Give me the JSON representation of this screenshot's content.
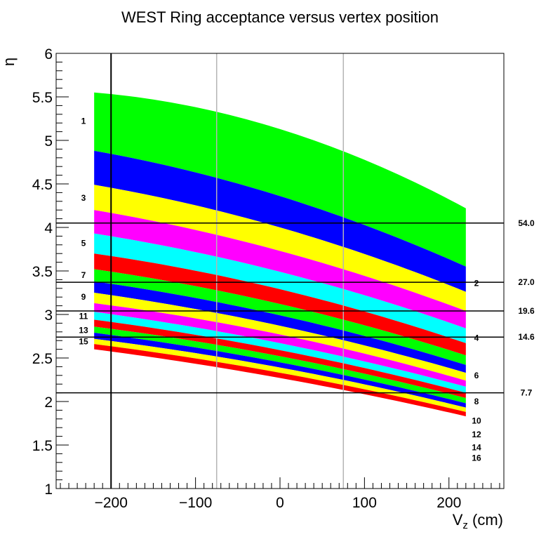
{
  "chart_data": {
    "type": "area",
    "title": "WEST Ring acceptance versus vertex position",
    "xlabel": {
      "main": "V",
      "sub": "z",
      "unit": " (cm)"
    },
    "ylabel": "η",
    "xlim": [
      -265,
      265
    ],
    "ylim": [
      1,
      6
    ],
    "x_ticks": [
      -200,
      -100,
      0,
      100,
      200
    ],
    "x_tick_labels": [
      "−200",
      "−100",
      "0",
      "100",
      "200"
    ],
    "y_ticks": [
      1,
      1.5,
      2,
      2.5,
      3,
      3.5,
      4,
      4.5,
      5,
      5.5,
      6
    ],
    "y_tick_labels": [
      "1",
      "1.5",
      "2",
      "2.5",
      "3",
      "3.5",
      "4",
      "4.5",
      "5",
      "5.5",
      "6"
    ],
    "x_minor_step": 10,
    "y_minor_step": 0.1,
    "vz_range": [
      -220,
      220
    ],
    "rings": [
      {
        "ring": 1,
        "color": "#00ff00",
        "eta_at_vz": {
          "-220": [
            4.88,
            5.55
          ],
          "0": [
            4.36,
            5.13
          ],
          "220": [
            3.55,
            4.22
          ]
        }
      },
      {
        "ring": 2,
        "color": "#0000ff",
        "eta_at_vz": {
          "-220": [
            4.49,
            4.88
          ],
          "0": [
            4.0,
            4.36
          ],
          "220": [
            3.26,
            3.55
          ]
        }
      },
      {
        "ring": 3,
        "color": "#ffff00",
        "eta_at_vz": {
          "-220": [
            4.2,
            4.49
          ],
          "0": [
            3.73,
            4.0
          ],
          "220": [
            3.04,
            3.26
          ]
        }
      },
      {
        "ring": 4,
        "color": "#ff00ff",
        "eta_at_vz": {
          "-220": [
            3.93,
            4.2
          ],
          "0": [
            3.49,
            3.73
          ],
          "220": [
            2.84,
            3.04
          ]
        }
      },
      {
        "ring": 5,
        "color": "#00ffff",
        "eta_at_vz": {
          "-220": [
            3.7,
            3.93
          ],
          "0": [
            3.29,
            3.49
          ],
          "220": [
            2.67,
            2.84
          ]
        }
      },
      {
        "ring": 6,
        "color": "#ff0000",
        "eta_at_vz": {
          "-220": [
            3.52,
            3.7
          ],
          "0": [
            3.12,
            3.29
          ],
          "220": [
            2.53,
            2.67
          ]
        }
      },
      {
        "ring": 7,
        "color": "#00ff00",
        "eta_at_vz": {
          "-220": [
            3.38,
            3.52
          ],
          "0": [
            2.99,
            3.12
          ],
          "220": [
            2.42,
            2.53
          ]
        }
      },
      {
        "ring": 8,
        "color": "#0000ff",
        "eta_at_vz": {
          "-220": [
            3.25,
            3.38
          ],
          "0": [
            2.87,
            2.99
          ],
          "220": [
            2.33,
            2.42
          ]
        }
      },
      {
        "ring": 9,
        "color": "#ffff00",
        "eta_at_vz": {
          "-220": [
            3.13,
            3.25
          ],
          "0": [
            2.77,
            2.87
          ],
          "220": [
            2.24,
            2.33
          ]
        }
      },
      {
        "ring": 10,
        "color": "#ff00ff",
        "eta_at_vz": {
          "-220": [
            3.03,
            3.13
          ],
          "0": [
            2.67,
            2.77
          ],
          "220": [
            2.17,
            2.24
          ]
        }
      },
      {
        "ring": 11,
        "color": "#00ffff",
        "eta_at_vz": {
          "-220": [
            2.94,
            3.03
          ],
          "0": [
            2.59,
            2.67
          ],
          "220": [
            2.1,
            2.17
          ]
        }
      },
      {
        "ring": 12,
        "color": "#ff0000",
        "eta_at_vz": {
          "-220": [
            2.86,
            2.94
          ],
          "0": [
            2.52,
            2.59
          ],
          "220": [
            2.04,
            2.1
          ]
        }
      },
      {
        "ring": 13,
        "color": "#00ff00",
        "eta_at_vz": {
          "-220": [
            2.79,
            2.86
          ],
          "0": [
            2.45,
            2.52
          ],
          "220": [
            1.98,
            2.04
          ]
        }
      },
      {
        "ring": 14,
        "color": "#0000ff",
        "eta_at_vz": {
          "-220": [
            2.72,
            2.79
          ],
          "0": [
            2.39,
            2.45
          ],
          "220": [
            1.93,
            1.98
          ]
        }
      },
      {
        "ring": 15,
        "color": "#ffff00",
        "eta_at_vz": {
          "-220": [
            2.66,
            2.72
          ],
          "0": [
            2.33,
            2.39
          ],
          "220": [
            1.88,
            1.93
          ]
        }
      },
      {
        "ring": 16,
        "color": "#ff0000",
        "eta_at_vz": {
          "-220": [
            2.6,
            2.66
          ],
          "0": [
            2.27,
            2.33
          ],
          "220": [
            1.83,
            1.88
          ]
        }
      }
    ],
    "ring_labels_left": [
      {
        "text": "1",
        "eta": 5.22
      },
      {
        "text": "3",
        "eta": 4.34
      },
      {
        "text": "5",
        "eta": 3.82
      },
      {
        "text": "7",
        "eta": 3.45
      },
      {
        "text": "9",
        "eta": 3.2
      },
      {
        "text": "11",
        "eta": 2.98
      },
      {
        "text": "13",
        "eta": 2.82
      },
      {
        "text": "15",
        "eta": 2.69
      }
    ],
    "ring_labels_right": [
      {
        "text": "2",
        "eta": 3.36
      },
      {
        "text": "4",
        "eta": 2.73
      },
      {
        "text": "6",
        "eta": 2.3
      },
      {
        "text": "8",
        "eta": 2.0
      },
      {
        "text": "10",
        "eta": 1.78
      },
      {
        "text": "12",
        "eta": 1.62
      },
      {
        "text": "14",
        "eta": 1.47
      },
      {
        "text": "16",
        "eta": 1.35
      }
    ],
    "horizontal_lines": [
      {
        "eta": 4.05,
        "label": "54.0"
      },
      {
        "eta": 3.37,
        "label": "27.0"
      },
      {
        "eta": 3.04,
        "label": "19.6"
      },
      {
        "eta": 2.74,
        "label": "14.6"
      },
      {
        "eta": 2.1,
        "label": "7.7"
      }
    ],
    "vertical_lines": [
      {
        "vz": -200,
        "color": "#000000"
      },
      {
        "vz": -75,
        "color": "#b4b4b4"
      },
      {
        "vz": 75,
        "color": "#b4b4b4"
      }
    ],
    "grid": false,
    "legend": "none"
  }
}
